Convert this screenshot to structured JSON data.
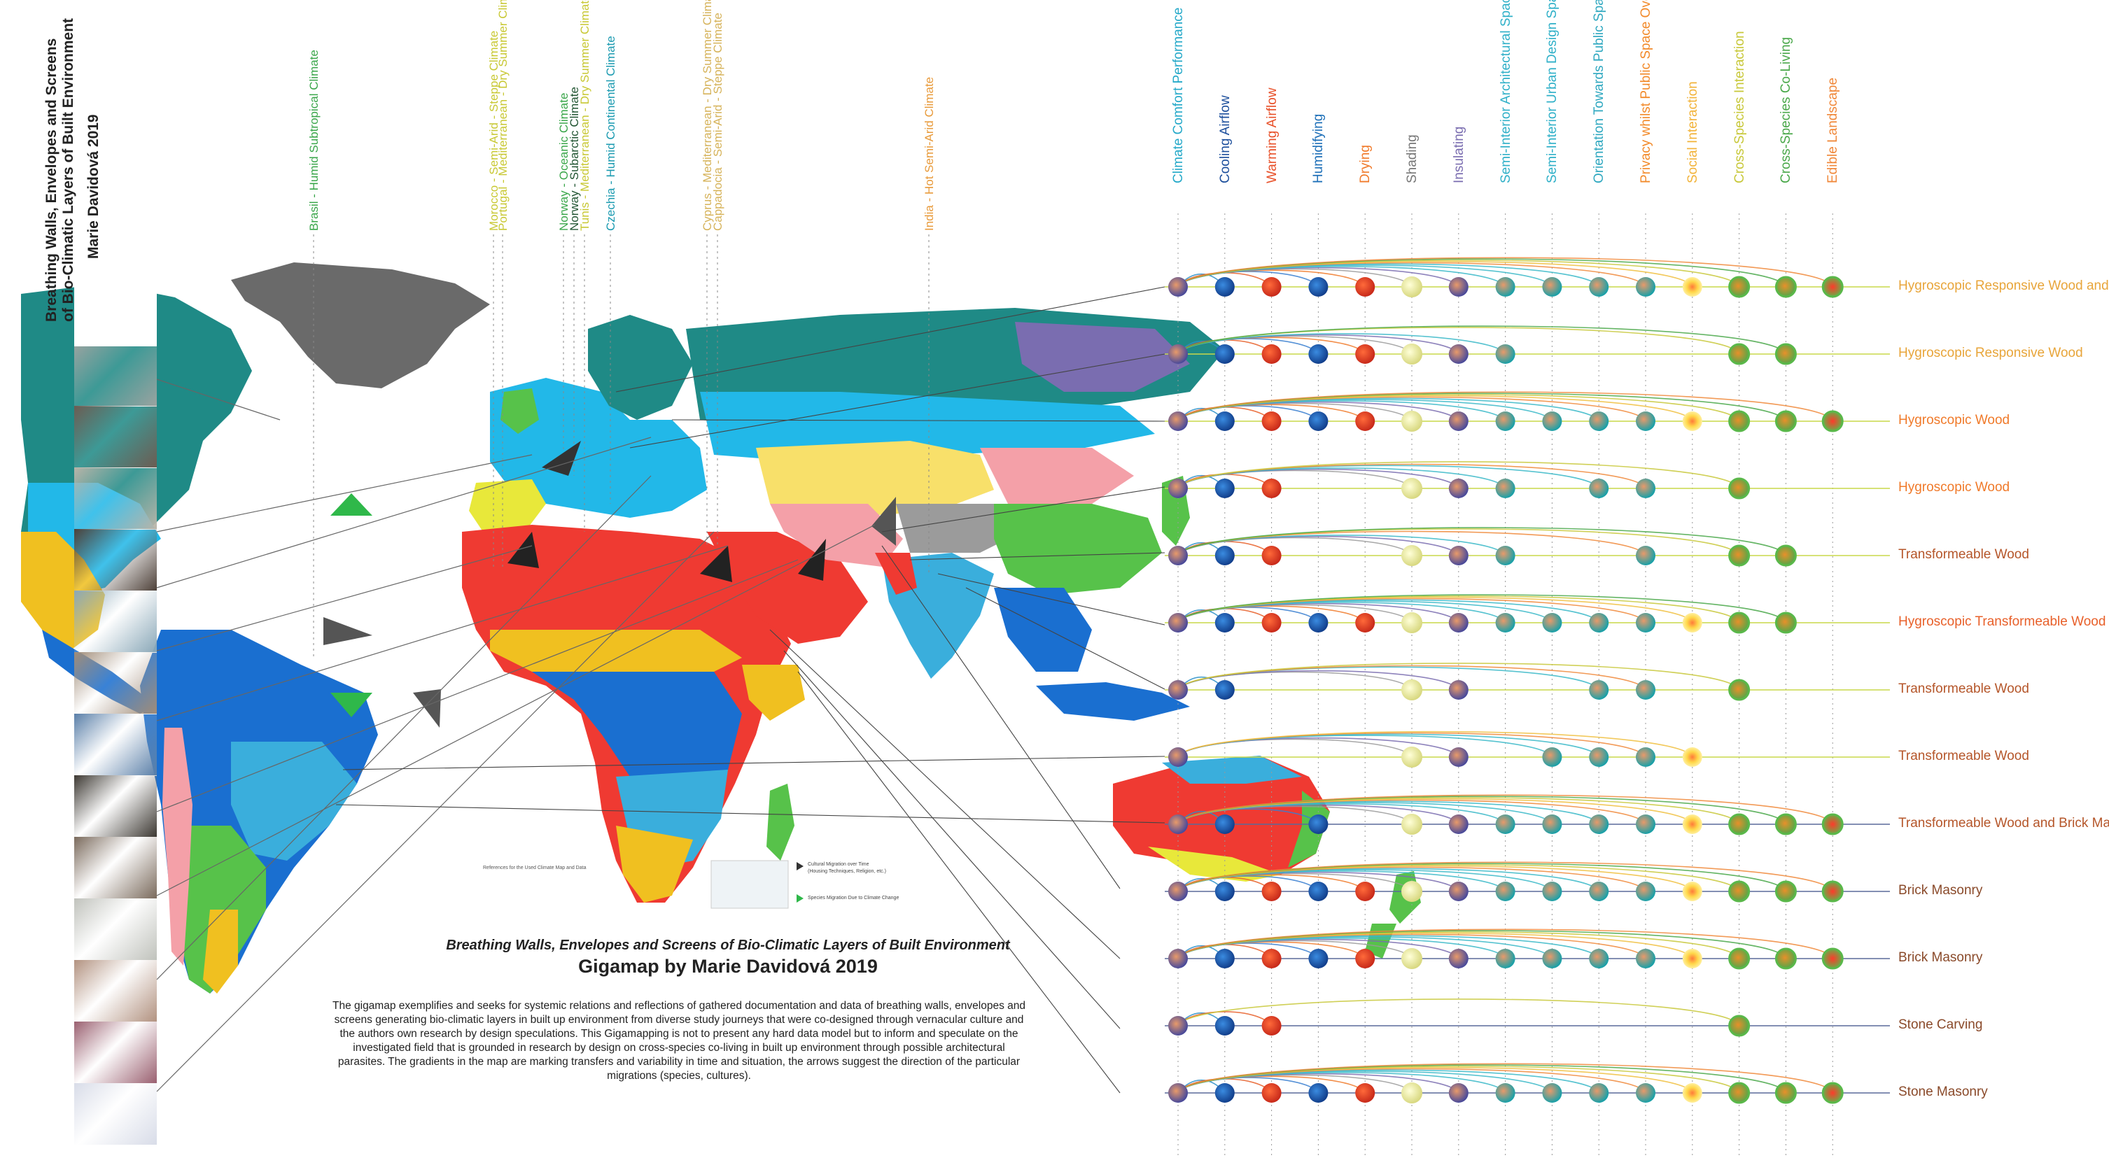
{
  "side_title": {
    "line1": "Breathing Walls, Envelopes and Screens",
    "line2": "of Bio-Climatic Layers of Built Environment",
    "author": "Marie Davidová 2019"
  },
  "climate_labels": [
    {
      "text": "Brasil - Humid Subtropical Climate",
      "color": "#3aa64a"
    },
    {
      "text": "Morocco - Semi-Arid - Steppe Climate",
      "color": "#c8c833"
    },
    {
      "text": "Portugal - Mediterranean - Dry Summer Climate",
      "color": "#c8c833"
    },
    {
      "text": "Norway - Oceanic Climate",
      "color": "#3aa64a"
    },
    {
      "text": "Norway - Subarctic Climate",
      "color": "#225533"
    },
    {
      "text": "Tunis - Mediterranean - Dry Summer Climate",
      "color": "#c8c833"
    },
    {
      "text": "Czechia - Humid Continental Climate",
      "color": "#1a9ab0"
    },
    {
      "text": "Cyprus - Mediterranean - Dry Summer Climate",
      "color": "#d6b35a"
    },
    {
      "text": "Cappadocia - Semi-Arid - Steppe Climate",
      "color": "#d6b35a"
    },
    {
      "text": "India - Hot Semi-Arid Climate",
      "color": "#e89a3a"
    }
  ],
  "categories": [
    {
      "label": "Climate Comfort Performance",
      "color": "#25a9c9"
    },
    {
      "label": "Cooling Airflow",
      "color": "#1d4f9c"
    },
    {
      "label": "Warming Airflow",
      "color": "#e8512a"
    },
    {
      "label": "Humidifying",
      "color": "#1d6fb8"
    },
    {
      "label": "Drying",
      "color": "#f07a2a"
    },
    {
      "label": "Shading",
      "color": "#777777"
    },
    {
      "label": "Insulating",
      "color": "#7a6db0"
    },
    {
      "label": "Semi-Interior Architectural Spaces",
      "color": "#2fb0c8"
    },
    {
      "label": "Semi-Interior Urban Design Spaces",
      "color": "#2fb0c8"
    },
    {
      "label": "Orientation Towards Public Space",
      "color": "#2fa8c0"
    },
    {
      "label": "Privacy whilst Public Space Overview",
      "color": "#f28a2a"
    },
    {
      "label": "Social Interaction",
      "color": "#f2b33a"
    },
    {
      "label": "Cross-Species Interaction",
      "color": "#c8c83a"
    },
    {
      "label": "Cross-Species Co-Living",
      "color": "#4aa84a"
    },
    {
      "label": "Edible Landscape",
      "color": "#f0883a"
    }
  ],
  "materials": [
    {
      "label": "Hygroscopic Responsive Wood and Algae",
      "color": "#e8a53a",
      "features": [
        1,
        1,
        1,
        1,
        1,
        1,
        1,
        1,
        1,
        1,
        1,
        1,
        1,
        1,
        1
      ]
    },
    {
      "label": "Hygroscopic Responsive Wood",
      "color": "#e8a53a",
      "features": [
        1,
        1,
        1,
        1,
        1,
        1,
        1,
        1,
        0,
        0,
        0,
        0,
        1,
        1,
        0
      ]
    },
    {
      "label": "Hygroscopic Wood",
      "color": "#f07a2a",
      "features": [
        1,
        1,
        1,
        1,
        1,
        1,
        1,
        1,
        1,
        1,
        1,
        1,
        1,
        1,
        1
      ]
    },
    {
      "label": "Hygroscopic  Wood",
      "color": "#f07a2a",
      "features": [
        1,
        1,
        1,
        0,
        0,
        1,
        1,
        1,
        0,
        1,
        1,
        0,
        1,
        0,
        0
      ]
    },
    {
      "label": "Transformeable Wood",
      "color": "#b5562a",
      "features": [
        1,
        1,
        1,
        0,
        0,
        1,
        1,
        1,
        0,
        0,
        1,
        0,
        1,
        1,
        0
      ]
    },
    {
      "label": "Hygroscopic Transformeable Wood",
      "color": "#e8602a",
      "features": [
        1,
        1,
        1,
        1,
        1,
        1,
        1,
        1,
        1,
        1,
        1,
        1,
        1,
        1,
        0
      ]
    },
    {
      "label": "Transformeable Wood",
      "color": "#b5562a",
      "features": [
        1,
        1,
        0,
        0,
        0,
        1,
        1,
        0,
        0,
        1,
        1,
        0,
        1,
        0,
        0
      ]
    },
    {
      "label": "Transformeable Wood",
      "color": "#b5562a",
      "features": [
        1,
        0,
        0,
        0,
        0,
        1,
        1,
        0,
        1,
        1,
        1,
        1,
        0,
        0,
        0
      ]
    },
    {
      "label": "Transformeable Wood and Brick Masonry",
      "color": "#b5562a",
      "features": [
        1,
        1,
        0,
        1,
        0,
        1,
        1,
        1,
        1,
        1,
        1,
        1,
        1,
        1,
        1
      ]
    },
    {
      "label": "Brick Masonry",
      "color": "#8a4a2a",
      "features": [
        1,
        1,
        1,
        1,
        1,
        1,
        1,
        1,
        1,
        1,
        1,
        1,
        1,
        1,
        1
      ]
    },
    {
      "label": "Brick Masonry",
      "color": "#8a4a2a",
      "features": [
        1,
        1,
        1,
        1,
        1,
        1,
        1,
        1,
        1,
        1,
        1,
        1,
        1,
        1,
        1
      ]
    },
    {
      "label": "Stone Carving",
      "color": "#8a4a2a",
      "features": [
        1,
        1,
        1,
        0,
        0,
        0,
        0,
        0,
        0,
        0,
        0,
        0,
        1,
        0,
        0
      ]
    },
    {
      "label": "Stone Masonry",
      "color": "#8a4a2a",
      "features": [
        1,
        1,
        1,
        1,
        1,
        1,
        1,
        1,
        1,
        1,
        1,
        1,
        1,
        1,
        1
      ]
    }
  ],
  "main_title": "Breathing Walls, Envelopes and Screens of Bio-Climatic Layers of Built Environment",
  "main_subtitle": "Gigamap by Marie Davidová 2019",
  "description": "The gigamap exemplifies and seeks for systemic relations and reflections of gathered documentation and data of breathing walls, envelopes and screens generating bio-climatic layers in built up environment from diverse study journeys that were co-designed through vernacular culture and the authors own research by design speculations. This Gigamapping is not to present any hard data model but to inform and speculate on the investigated field that is grounded in research by design on cross-species co-living in built up environment through possible architectural parasites. The gradients in the map are marking transfers and variability in time and situation, the arrows suggest the direction of the particular migrations (species, cultures).",
  "legend": {
    "refs_heading": "References for the Used Climate Map and Data",
    "cultural": "Cultural Migration over Time",
    "cultural_note": "(Housing Techniques, Religion, etc.)",
    "species": "Species Migration Due to Climate Change"
  },
  "photo_colors": [
    "#9aa3a0",
    "#6c5c52",
    "#b8b4a8",
    "#4d4038",
    "#8aa8b8",
    "#a08c78",
    "#5a7fa8",
    "#3c3832",
    "#7a6a5c",
    "#c0c2bc",
    "#b29280",
    "#9a6070",
    "#d8dce8"
  ],
  "climate_colors": {
    "ocean": "#ffffff",
    "tundra": "#9b9b9b",
    "ice": "#6a6a6a",
    "boreal": "#1f8a86",
    "continental": "#22b8e8",
    "desert": "#ef3a32",
    "steppe": "#f0c020",
    "tropical": "#1a6fd0",
    "savanna": "#3aaedc",
    "subtropical": "#57c24a",
    "mediterranean": "#e8e83a",
    "highland": "#f4a0a8",
    "cold_steppe": "#f8e06a"
  }
}
